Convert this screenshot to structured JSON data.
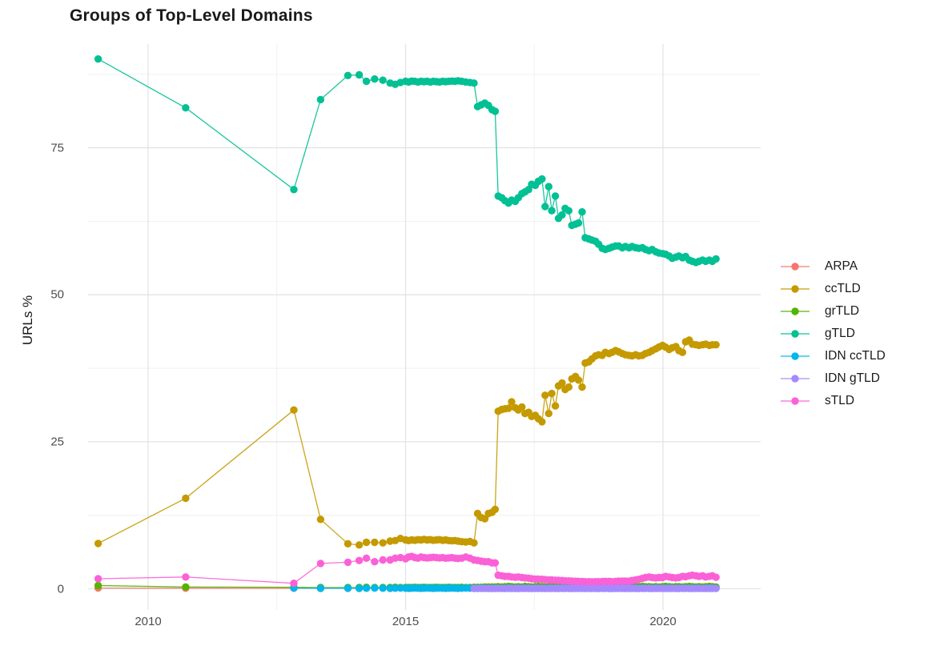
{
  "chart_data": {
    "type": "line-scatter",
    "title": "Groups of Top-Level Domains",
    "ylabel": "URLs %",
    "xlabel": "",
    "x_range": [
      2008.85,
      2021.9
    ],
    "y_range": [
      0,
      91.5
    ],
    "grid": true,
    "legend_position": "right",
    "yticks": [
      0,
      25,
      50,
      75
    ],
    "ytick_labels": [
      "0",
      "25",
      "50",
      "75"
    ],
    "y_minor": [
      12.5,
      37.5,
      62.5,
      87.5
    ],
    "xticks": [
      2010,
      2015,
      2020
    ],
    "xtick_labels": [
      "2010",
      "2015",
      "2020"
    ],
    "x_minor": [
      2012.5,
      2017.5
    ],
    "x_dense": [
      2013.88,
      2014.1,
      2014.24,
      2014.4,
      2014.56,
      2014.7,
      2014.8,
      2014.9,
      2015.0,
      2015.06,
      2015.12,
      2015.18,
      2015.24,
      2015.3,
      2015.36,
      2015.42,
      2015.48,
      2015.54,
      2015.6,
      2015.66,
      2015.72,
      2015.78,
      2015.84,
      2015.9,
      2015.96,
      2016.02,
      2016.09,
      2016.17,
      2016.25,
      2016.33,
      2016.4,
      2016.47,
      2016.54,
      2016.61,
      2016.68,
      2016.74,
      2016.8,
      2016.87,
      2016.93,
      2017.0,
      2017.06,
      2017.13,
      2017.19,
      2017.26,
      2017.32,
      2017.39,
      2017.45,
      2017.52,
      2017.58,
      2017.65,
      2017.71,
      2017.78,
      2017.84,
      2017.91,
      2017.97,
      2018.04,
      2018.1,
      2018.17,
      2018.23,
      2018.3,
      2018.36,
      2018.43,
      2018.49,
      2018.56,
      2018.62,
      2018.69,
      2018.75,
      2018.82,
      2018.88,
      2018.95,
      2019.01,
      2019.08,
      2019.14,
      2019.21,
      2019.27,
      2019.34,
      2019.4,
      2019.47,
      2019.53,
      2019.6,
      2019.66,
      2019.73,
      2019.79,
      2019.86,
      2019.92,
      2019.99,
      2020.05,
      2020.12,
      2020.18,
      2020.25,
      2020.31,
      2020.38,
      2020.44,
      2020.51,
      2020.57,
      2020.64,
      2020.7,
      2020.77,
      2020.83,
      2020.9,
      2020.96,
      2021.03
    ],
    "series": [
      {
        "name": "ARPA",
        "color": "#F8766D",
        "early": [
          [
            2009.03,
            0.12
          ],
          [
            2010.73,
            0.1
          ],
          [
            2012.83,
            0.1
          ],
          [
            2013.35,
            0.08
          ],
          [
            2013.88,
            0.08
          ],
          [
            2014.1,
            0.08
          ]
        ],
        "dense": []
      },
      {
        "name": "ccTLD",
        "color": "#C49A00",
        "early": [
          [
            2009.03,
            7.7
          ],
          [
            2010.73,
            15.4
          ],
          [
            2012.83,
            30.4
          ],
          [
            2013.35,
            11.8
          ]
        ],
        "dense": [
          7.65,
          7.45,
          7.9,
          7.9,
          7.8,
          8.1,
          8.2,
          8.55,
          8.3,
          8.2,
          8.3,
          8.25,
          8.35,
          8.3,
          8.4,
          8.3,
          8.35,
          8.25,
          8.3,
          8.35,
          8.25,
          8.3,
          8.2,
          8.15,
          8.2,
          8.1,
          8.0,
          7.95,
          8.05,
          7.8,
          12.8,
          12.1,
          11.9,
          12.8,
          13.0,
          13.5,
          30.2,
          30.5,
          30.6,
          30.7,
          31.8,
          30.8,
          30.4,
          30.9,
          29.8,
          30.0,
          29.3,
          29.5,
          28.9,
          28.4,
          32.9,
          29.8,
          33.2,
          31.1,
          34.5,
          35.0,
          33.9,
          34.3,
          35.7,
          36.1,
          35.5,
          34.3,
          38.4,
          38.6,
          39.1,
          39.6,
          39.8,
          39.7,
          40.2,
          40.0,
          40.2,
          40.5,
          40.3,
          40.0,
          39.8,
          39.7,
          39.6,
          39.8,
          39.6,
          39.7,
          40.0,
          40.2,
          40.5,
          40.8,
          41.1,
          41.4,
          41.1,
          40.7,
          41.0,
          41.2,
          40.5,
          40.2,
          42.0,
          42.3,
          41.6,
          41.5,
          41.4,
          41.5,
          41.6,
          41.4,
          41.5,
          41.5
        ]
      },
      {
        "name": "grTLD",
        "color": "#53B400",
        "early": [
          [
            2009.03,
            0.55
          ],
          [
            2010.73,
            0.3
          ],
          [
            2012.83,
            0.25
          ],
          [
            2013.35,
            0.2
          ]
        ],
        "dense": [
          0.2,
          0.2,
          0.25,
          0.2,
          0.22,
          0.2,
          0.25,
          0.22,
          0.2,
          0.22,
          0.2,
          0.25,
          0.2,
          0.22,
          0.25,
          0.2,
          0.22,
          0.2,
          0.25,
          0.22,
          0.2,
          0.22,
          0.25,
          0.2,
          0.22,
          0.2,
          0.25,
          0.22,
          0.2,
          0.25,
          0.25,
          0.25,
          0.3,
          0.3,
          0.3,
          0.3,
          0.35,
          0.3,
          0.35,
          0.4,
          0.35,
          0.3,
          0.35,
          0.3,
          0.4,
          0.35,
          0.3,
          0.35,
          0.4,
          0.35,
          0.3,
          0.35,
          0.3,
          0.35,
          0.4,
          0.35,
          0.35,
          0.3,
          0.35,
          0.4,
          0.35,
          0.3,
          0.35,
          0.35,
          0.3,
          0.35,
          0.4,
          0.35,
          0.3,
          0.35,
          0.3,
          0.35,
          0.35,
          0.4,
          0.35,
          0.3,
          0.35,
          0.3,
          0.35,
          0.4,
          0.35,
          0.35,
          0.3,
          0.35,
          0.3,
          0.35,
          0.4,
          0.35,
          0.3,
          0.35,
          0.35,
          0.3,
          0.35,
          0.4,
          0.35,
          0.3,
          0.35,
          0.3,
          0.35,
          0.4,
          0.35,
          0.3
        ]
      },
      {
        "name": "gTLD",
        "color": "#00C094",
        "early": [
          [
            2009.03,
            90.1
          ],
          [
            2010.73,
            81.8
          ],
          [
            2012.83,
            67.9
          ],
          [
            2013.35,
            83.2
          ]
        ],
        "dense": [
          87.3,
          87.4,
          86.3,
          86.7,
          86.5,
          86.0,
          85.8,
          86.1,
          86.3,
          86.2,
          86.35,
          86.3,
          86.2,
          86.3,
          86.25,
          86.3,
          86.2,
          86.3,
          86.25,
          86.2,
          86.3,
          86.25,
          86.3,
          86.35,
          86.3,
          86.4,
          86.3,
          86.2,
          86.1,
          86.0,
          82.0,
          82.3,
          82.6,
          82.2,
          81.5,
          81.2,
          66.8,
          66.5,
          66.0,
          65.6,
          66.1,
          65.9,
          66.5,
          67.2,
          67.5,
          67.9,
          68.8,
          68.6,
          69.3,
          69.7,
          65.0,
          68.4,
          64.3,
          66.8,
          63.0,
          63.6,
          64.7,
          64.3,
          61.8,
          62.0,
          62.2,
          64.1,
          59.7,
          59.5,
          59.3,
          59.1,
          58.6,
          57.9,
          57.7,
          57.9,
          58.1,
          58.3,
          58.3,
          58.0,
          58.2,
          58.0,
          58.2,
          58.0,
          57.9,
          58.0,
          57.7,
          57.5,
          57.7,
          57.3,
          57.1,
          57.0,
          56.9,
          56.6,
          56.2,
          56.4,
          56.6,
          56.3,
          56.5,
          55.9,
          55.7,
          55.5,
          55.7,
          55.9,
          55.7,
          55.9,
          55.7,
          56.1
        ]
      },
      {
        "name": "IDN ccTLD",
        "color": "#00B6EB",
        "early": [
          [
            2012.83,
            0.12
          ],
          [
            2013.35,
            0.08
          ]
        ],
        "dense": [
          0.1,
          0.08,
          0.1,
          0.12,
          0.1,
          0.08,
          0.1,
          0.12,
          0.1,
          0.08,
          0.1,
          0.12,
          0.1,
          0.08,
          0.1,
          0.12,
          0.1,
          0.08,
          0.1,
          0.12,
          0.1,
          0.08,
          0.1,
          0.12,
          0.1,
          0.08,
          0.1,
          0.12,
          0.1,
          0.08,
          0.1,
          0.12,
          0.1,
          0.08,
          0.1,
          0.12,
          0.1,
          0.08,
          0.1,
          0.12,
          0.1,
          0.08,
          0.1,
          0.12,
          0.1,
          0.08,
          0.1,
          0.12,
          0.1,
          0.08,
          0.1,
          0.12,
          0.1,
          0.08,
          0.1,
          0.12,
          0.1,
          0.08,
          0.1,
          0.12,
          0.1,
          0.08,
          0.1,
          0.12,
          0.1,
          0.08,
          0.1,
          0.12,
          0.1,
          0.08,
          0.1,
          0.12,
          0.1,
          0.08,
          0.1,
          0.12,
          0.1,
          0.08,
          0.1,
          0.12,
          0.1,
          0.08,
          0.1,
          0.12,
          0.1,
          0.08,
          0.1,
          0.12,
          0.1,
          0.08,
          0.1,
          0.12,
          0.1,
          0.08,
          0.1,
          0.12,
          0.1,
          0.08,
          0.1,
          0.12,
          0.1,
          0.1
        ]
      },
      {
        "name": "IDN gTLD",
        "color": "#A58AFF",
        "early": [],
        "dense_offset": 29,
        "dense": [
          0.05,
          0.04,
          0.06,
          0.05,
          0.05,
          0.04,
          0.06,
          0.05,
          0.05,
          0.04,
          0.06,
          0.05,
          0.05,
          0.04,
          0.06,
          0.05,
          0.05,
          0.04,
          0.06,
          0.05,
          0.05,
          0.04,
          0.06,
          0.05,
          0.05,
          0.04,
          0.06,
          0.05,
          0.05,
          0.04,
          0.06,
          0.05,
          0.05,
          0.04,
          0.06,
          0.05,
          0.05,
          0.04,
          0.06,
          0.05,
          0.05,
          0.04,
          0.06,
          0.05,
          0.05,
          0.04,
          0.06,
          0.05,
          0.05,
          0.04,
          0.06,
          0.05,
          0.05,
          0.04,
          0.06,
          0.05,
          0.05,
          0.04,
          0.06,
          0.05,
          0.05,
          0.04,
          0.06,
          0.05,
          0.05,
          0.04,
          0.06,
          0.05,
          0.05,
          0.04,
          0.06,
          0.05,
          0.05
        ]
      },
      {
        "name": "sTLD",
        "color": "#FB61D7",
        "early": [
          [
            2009.03,
            1.7
          ],
          [
            2010.73,
            2.0
          ],
          [
            2012.83,
            0.93
          ],
          [
            2013.35,
            4.3
          ]
        ],
        "dense": [
          4.5,
          4.8,
          5.2,
          4.6,
          4.9,
          4.9,
          5.2,
          5.3,
          5.1,
          5.4,
          5.5,
          5.3,
          5.2,
          5.4,
          5.3,
          5.25,
          5.3,
          5.35,
          5.3,
          5.25,
          5.3,
          5.2,
          5.25,
          5.3,
          5.2,
          5.15,
          5.2,
          5.4,
          5.2,
          4.9,
          4.8,
          4.7,
          4.6,
          4.6,
          4.4,
          4.4,
          2.3,
          2.2,
          2.1,
          2.1,
          2.0,
          1.95,
          2.0,
          1.9,
          1.85,
          1.8,
          1.7,
          1.65,
          1.65,
          1.6,
          1.55,
          1.5,
          1.5,
          1.45,
          1.43,
          1.4,
          1.35,
          1.33,
          1.3,
          1.28,
          1.25,
          1.22,
          1.2,
          1.2,
          1.18,
          1.2,
          1.2,
          1.22,
          1.25,
          1.25,
          1.2,
          1.25,
          1.3,
          1.3,
          1.3,
          1.3,
          1.4,
          1.5,
          1.6,
          1.75,
          1.9,
          2.0,
          1.9,
          1.85,
          1.9,
          1.9,
          2.1,
          2.0,
          1.9,
          1.85,
          1.9,
          2.1,
          2.05,
          2.2,
          2.3,
          2.2,
          2.1,
          2.2,
          2.0,
          2.1,
          2.2,
          1.95
        ]
      }
    ]
  }
}
